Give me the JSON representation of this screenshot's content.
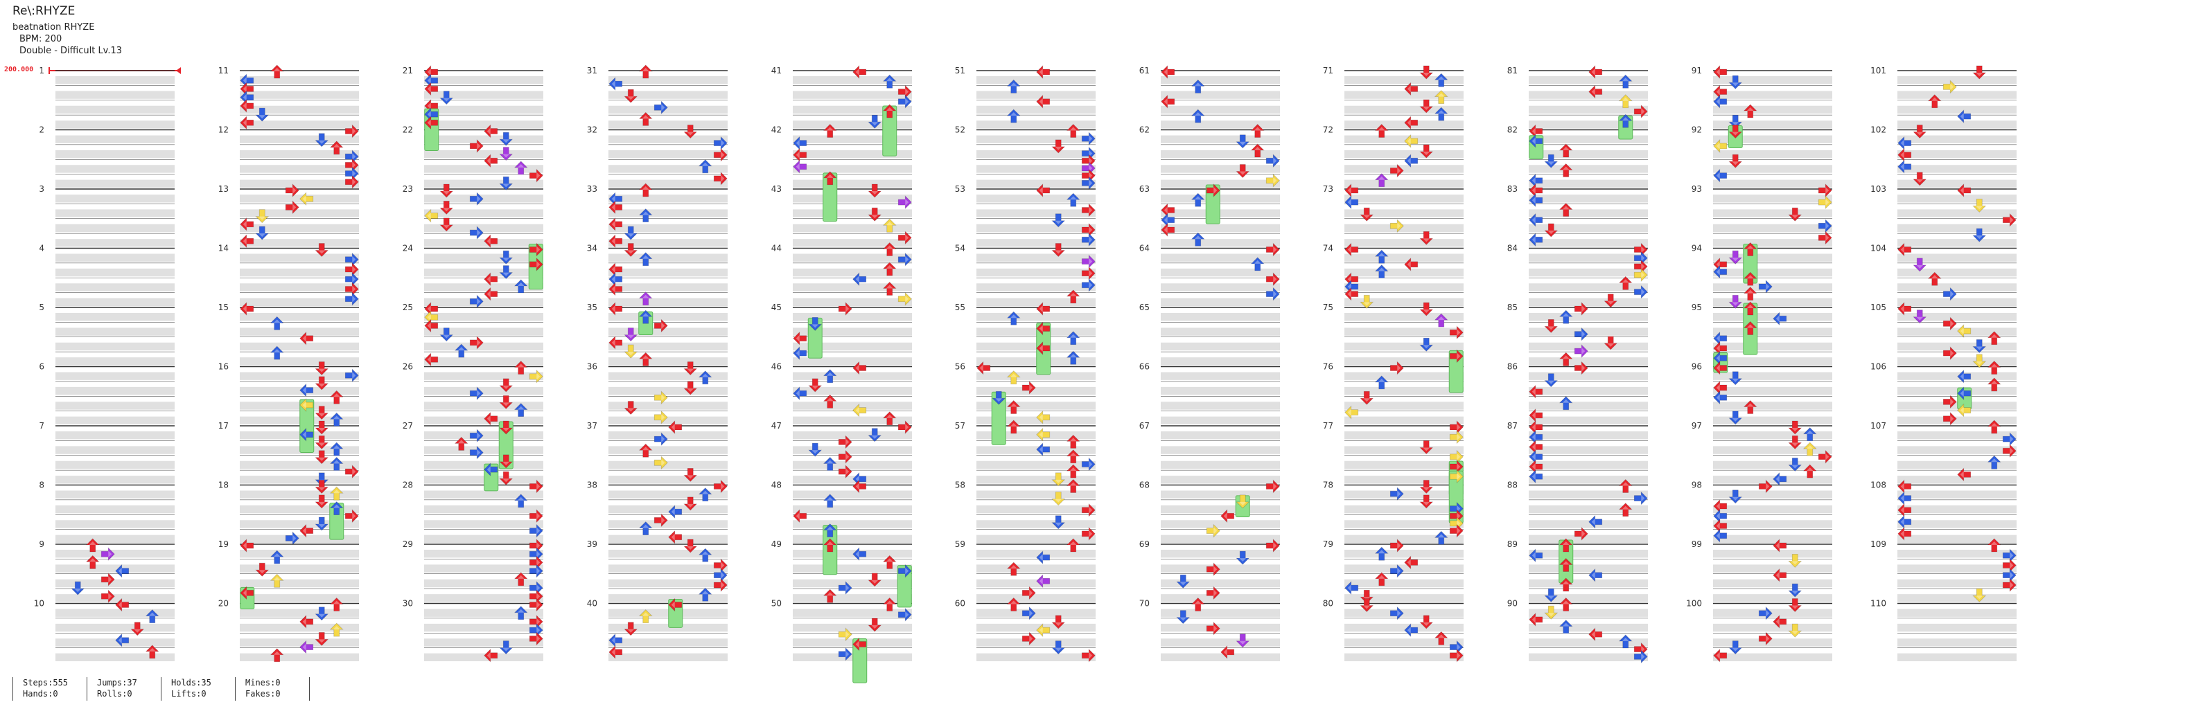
{
  "song": {
    "title": "Re\\:RHYZE",
    "artist": "beatnation RHYZE",
    "bpm_label": "BPM: 200",
    "difficulty_label": "Double - Difficult  Lv.13"
  },
  "bpm_marker": "200.000",
  "measure_numbers": [
    "1",
    "2",
    "3",
    "4",
    "5",
    "6",
    "7",
    "8",
    "9",
    "10",
    "11",
    "12",
    "13",
    "14",
    "15",
    "16",
    "17",
    "18",
    "19",
    "20",
    "21",
    "22",
    "23",
    "24",
    "25",
    "26",
    "27",
    "28",
    "29",
    "30",
    "31",
    "32",
    "33",
    "34",
    "35",
    "36",
    "37",
    "38",
    "39",
    "40",
    "41",
    "42",
    "43",
    "44",
    "45",
    "46",
    "47",
    "48",
    "49",
    "50",
    "51",
    "52",
    "53",
    "54",
    "55",
    "56",
    "57",
    "58",
    "59",
    "60",
    "61",
    "62",
    "63",
    "64",
    "65",
    "66",
    "67",
    "68",
    "69",
    "70",
    "71",
    "72",
    "73",
    "74",
    "75",
    "76",
    "77",
    "78",
    "79",
    "80",
    "81",
    "82",
    "83",
    "84",
    "85",
    "86",
    "87",
    "88",
    "89",
    "90",
    "91",
    "92",
    "93",
    "94",
    "95",
    "96",
    "97",
    "98",
    "99",
    "100",
    "101",
    "102",
    "103",
    "104",
    "105",
    "106",
    "107",
    "108",
    "109",
    "110"
  ],
  "colors": {
    "quarter": "#e8242b",
    "eighth": "#2f5fe0",
    "sixteenth": "#f5d848",
    "twentyfourth": "#a53ae0",
    "hold": "#8ee08a",
    "row_shade": "#e0e0e0",
    "row_line": "#333333"
  },
  "icons": [
    "arrow-left-icon",
    "arrow-down-icon",
    "arrow-up-icon",
    "arrow-right-icon",
    "hold-note-icon"
  ],
  "stats": [
    {
      "label_1": "Steps:555",
      "label_2": "Hands:0"
    },
    {
      "label_1": "Jumps:37",
      "label_2": "Rolls:0"
    },
    {
      "label_1": "Holds:35",
      "label_2": "Lifts:0"
    },
    {
      "label_1": "Mines:0",
      "label_2": "Fakes:0"
    }
  ]
}
